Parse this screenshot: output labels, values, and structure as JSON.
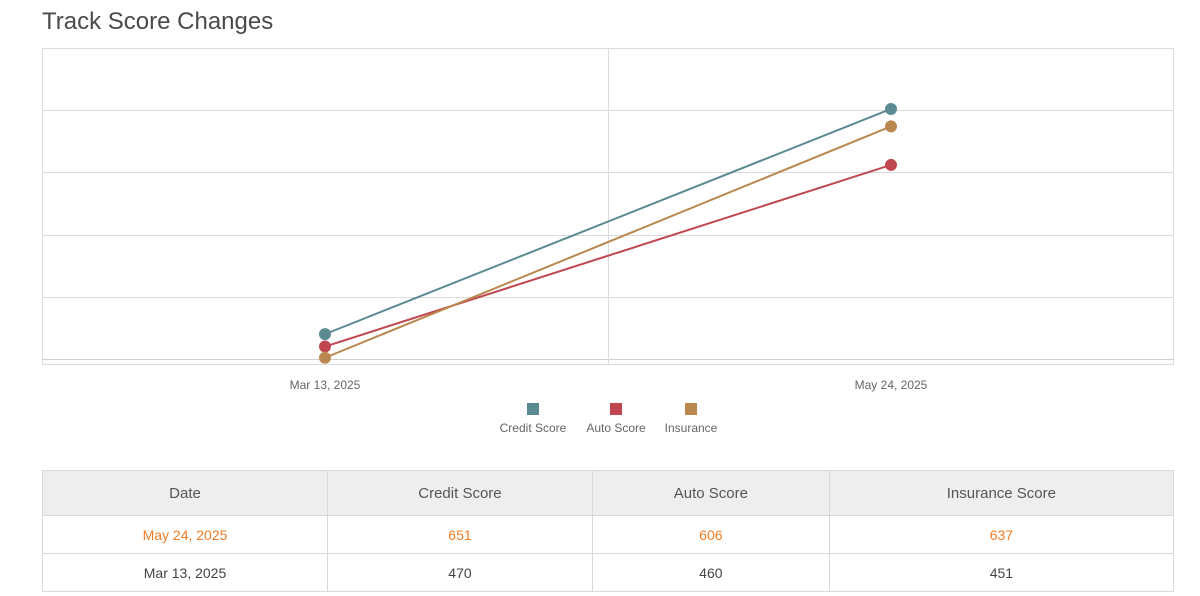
{
  "title": "Track Score Changes",
  "colors": {
    "credit": "#5b8a93",
    "auto": "#c0474f",
    "insurance": "#b9884f",
    "highlight": "#f07c25"
  },
  "chart_data": {
    "type": "line",
    "categories": [
      "Mar 13, 2025",
      "May 24, 2025"
    ],
    "series": [
      {
        "name": "Credit Score",
        "values": [
          470,
          651
        ],
        "color": "#5b8a93"
      },
      {
        "name": "Auto Score",
        "values": [
          460,
          606
        ],
        "color": "#c0474f"
      },
      {
        "name": "Insurance",
        "values": [
          451,
          637
        ],
        "color": "#b9884f"
      }
    ],
    "ylim": [
      450,
      700
    ],
    "grid": true,
    "legend": "bottom"
  },
  "table": {
    "headers": [
      "Date",
      "Credit Score",
      "Auto Score",
      "Insurance Score"
    ],
    "rows": [
      [
        "May 24, 2025",
        "651",
        "606",
        "637"
      ],
      [
        "Mar 13, 2025",
        "470",
        "460",
        "451"
      ]
    ]
  }
}
